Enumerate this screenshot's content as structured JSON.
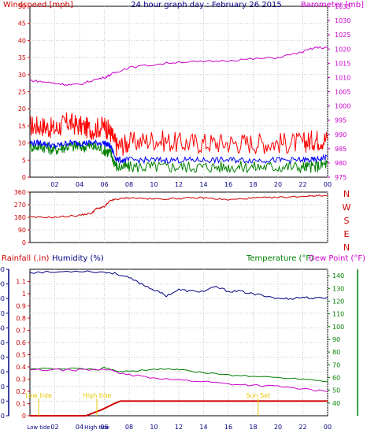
{
  "chart_data": [
    {
      "type": "line",
      "panel": "wind-barometer",
      "title": "24 hour graph day : February 26 2015",
      "ylabel_left": "Windspeed [mph]",
      "ylabel_right": "Barometer [mb]",
      "x_ticks": [
        "02",
        "04",
        "06",
        "08",
        "10",
        "12",
        "14",
        "16",
        "18",
        "20",
        "22",
        "00"
      ],
      "x_hours": [
        0,
        1,
        2,
        3,
        4,
        5,
        6,
        6.5,
        7,
        8,
        10,
        12,
        14,
        16,
        18,
        20,
        22,
        23,
        24
      ],
      "ylim_left": [
        0,
        50
      ],
      "ylim_right": [
        975,
        1035
      ],
      "y_ticks_left": [
        "0",
        "5",
        "10",
        "15",
        "20",
        "25",
        "30",
        "35",
        "40",
        "45",
        "50"
      ],
      "y_ticks_right": [
        "975",
        "980",
        "985",
        "990",
        "995",
        "1000",
        "1005",
        "1010",
        "1015",
        "1020",
        "1025",
        "1030",
        "1035"
      ],
      "grid": true,
      "series": [
        {
          "color": "#ff0000",
          "axis": "left",
          "values": [
            15,
            15,
            14,
            16,
            15,
            14,
            15,
            13,
            9,
            10,
            11,
            10,
            10,
            10,
            10,
            10,
            10,
            11,
            11
          ]
        },
        {
          "color": "#008000",
          "axis": "left",
          "values": [
            9,
            9,
            8,
            9,
            9,
            9,
            8,
            7,
            3,
            3,
            3,
            3,
            3,
            3,
            3,
            3,
            3,
            3,
            4
          ]
        },
        {
          "color": "#0000ff",
          "axis": "left",
          "values": [
            10,
            10,
            9,
            10,
            10,
            10,
            10,
            9,
            5,
            5,
            5,
            5,
            5,
            5,
            5,
            5,
            5,
            5,
            6
          ]
        },
        {
          "color": "#cc00cc",
          "axis": "right",
          "values": [
            1009,
            1008.5,
            1008,
            1007.5,
            1007.5,
            1009,
            1010,
            1011,
            1012,
            1013.5,
            1014.5,
            1015.5,
            1015.5,
            1016,
            1016.5,
            1017,
            1019,
            1020.5,
            1020.5
          ]
        }
      ]
    },
    {
      "type": "line",
      "panel": "wind-direction",
      "ylim": [
        0,
        360
      ],
      "y_ticks": [
        "0",
        "90",
        "180",
        "270",
        "360"
      ],
      "compass_labels": [
        "N",
        "W",
        "S",
        "E",
        "N"
      ],
      "grid": true,
      "series": [
        {
          "color": "#cc0000",
          "x": [
            0,
            2,
            4,
            5,
            5.3,
            6,
            6.5,
            7,
            8,
            10,
            12,
            14,
            16,
            18,
            20,
            22,
            23,
            24
          ],
          "values": [
            180,
            180,
            195,
            210,
            240,
            255,
            300,
            310,
            320,
            310,
            315,
            320,
            305,
            318,
            322,
            330,
            335,
            335
          ]
        }
      ]
    },
    {
      "type": "line",
      "panel": "rain-humidity-temperature",
      "ylabel_left_1": "Rainfall (.in)",
      "ylabel_left_2": "Humidity (%)",
      "ylabel_right_1": "Temperature (°F)",
      "ylabel_right_2": "Dew Point (°F)",
      "x_ticks": [
        "Low tide",
        "02",
        "04",
        "High tide",
        "06",
        "08",
        "10",
        "12",
        "14",
        "16",
        "18",
        "20",
        "22",
        "00"
      ],
      "ylim_humidity": [
        0,
        100
      ],
      "ylim_rain": [
        0,
        1.2
      ],
      "ylim_temperature": [
        30,
        145
      ],
      "y_ticks_humidity": [
        "0",
        "10",
        "20",
        "30",
        "40",
        "50",
        "60",
        "70",
        "80",
        "90",
        "100"
      ],
      "y_ticks_rain": [
        "0",
        "0.1",
        "0.2",
        "0.3",
        "0.4",
        "0.5",
        "0.6",
        "0.7",
        "0.8",
        "0.9",
        "1",
        "1.1"
      ],
      "y_ticks_temperature": [
        "40",
        "50",
        "60",
        "70",
        "80",
        "90",
        "100",
        "110",
        "120",
        "130",
        "140"
      ],
      "annotations": [
        {
          "text": "Low tide",
          "hour": 0.7
        },
        {
          "text": "High tide",
          "hour": 5.4
        },
        {
          "text": "Sun Set",
          "hour": 18.4
        }
      ],
      "grid": true,
      "series": [
        {
          "color": "#000080",
          "axis": "humidity",
          "x": [
            0,
            2,
            4,
            6,
            7,
            8,
            9,
            10,
            11,
            12,
            13,
            14,
            15,
            16,
            17,
            18,
            19,
            20,
            21,
            22,
            23,
            24
          ],
          "values": [
            98,
            98,
            99,
            98,
            97,
            94,
            90,
            86,
            82,
            86,
            85,
            85,
            88,
            85,
            85,
            83,
            82,
            80,
            80,
            81,
            80,
            81
          ]
        },
        {
          "color": "#cc0000",
          "axis": "rain",
          "x": [
            0,
            4.5,
            5.8,
            6.8,
            7.3,
            24
          ],
          "values": [
            0,
            0,
            0.05,
            0.1,
            0.12,
            0.12
          ]
        },
        {
          "color": "#008000",
          "axis": "temperature",
          "x": [
            0,
            2,
            4,
            5.5,
            6,
            7,
            8,
            10,
            11,
            12,
            14,
            16,
            18,
            20,
            22,
            24
          ],
          "values": [
            67,
            67,
            67,
            66,
            68,
            65,
            65,
            66,
            67,
            66,
            64,
            62,
            61,
            60,
            59,
            57
          ]
        },
        {
          "color": "#cc00cc",
          "axis": "temperature",
          "x": [
            0,
            2,
            4,
            5.5,
            6,
            7,
            8,
            10,
            12,
            14,
            16,
            18,
            20,
            22,
            24
          ],
          "values": [
            66,
            66,
            66,
            66,
            67,
            64,
            62,
            60,
            58,
            57,
            55,
            54,
            53,
            51,
            49
          ]
        }
      ]
    }
  ]
}
